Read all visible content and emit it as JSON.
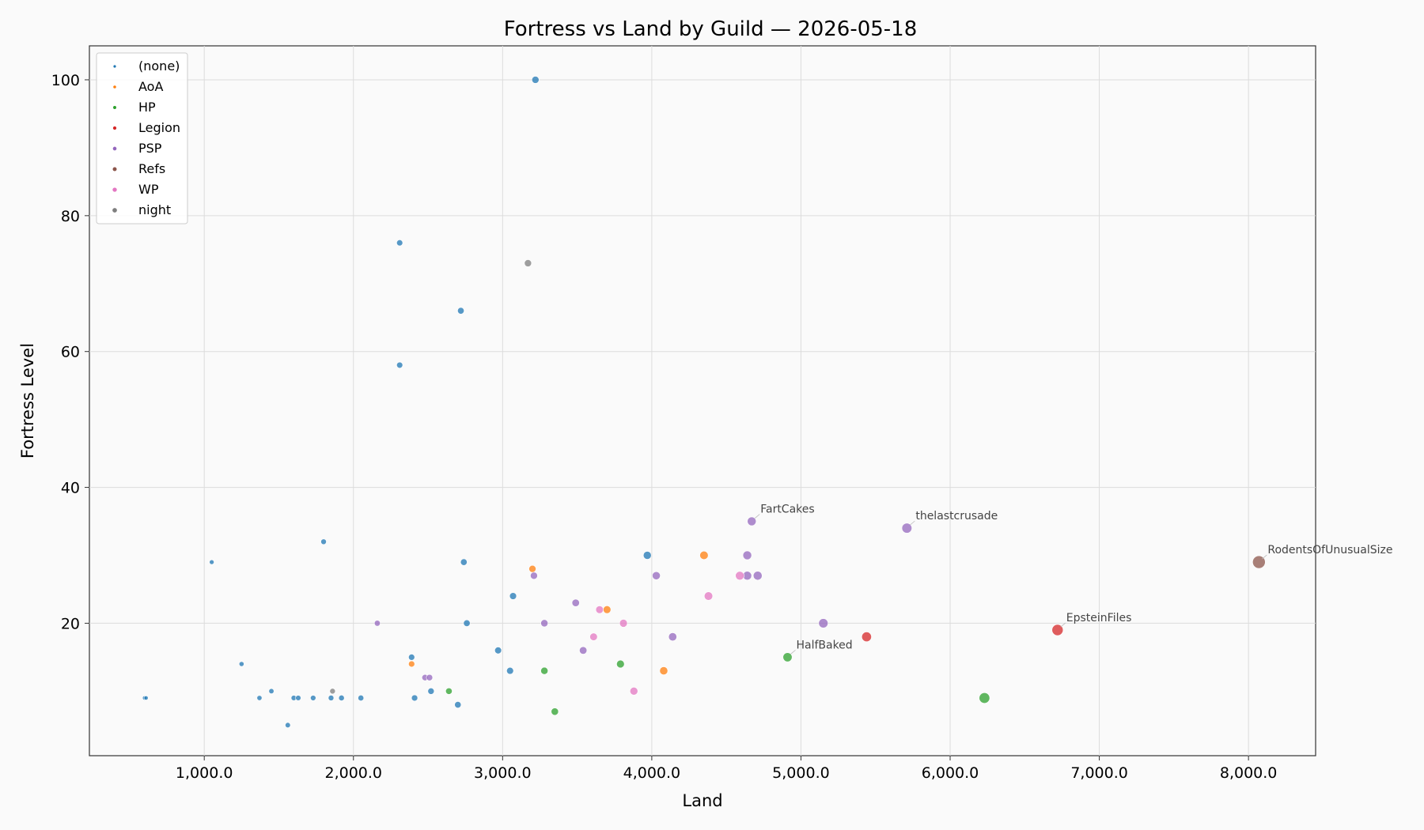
{
  "chart_data": {
    "type": "scatter",
    "title": "Fortress vs Land by Guild — 2026-05-18",
    "xlabel": "Land",
    "ylabel": "Fortress Level",
    "xlim": [
      230,
      8450
    ],
    "ylim": [
      0.5,
      105
    ],
    "xticks": [
      1000,
      2000,
      3000,
      4000,
      5000,
      6000,
      7000,
      8000
    ],
    "xtick_labels": [
      "1,000.0",
      "2,000.0",
      "3,000.0",
      "4,000.0",
      "5,000.0",
      "6,000.0",
      "7,000.0",
      "8,000.0"
    ],
    "yticks": [
      20,
      40,
      60,
      80,
      100
    ],
    "ytick_labels": [
      "20",
      "40",
      "60",
      "80",
      "100"
    ],
    "grid": true,
    "legend_position": "top-left",
    "series": [
      {
        "name": "(none)",
        "color": "#1f77b4",
        "points": [
          [
            600,
            9
          ],
          [
            610,
            9
          ],
          [
            1050,
            29
          ],
          [
            1250,
            14
          ],
          [
            1370,
            9
          ],
          [
            1450,
            10
          ],
          [
            1560,
            5
          ],
          [
            1600,
            9
          ],
          [
            1630,
            9
          ],
          [
            1730,
            9
          ],
          [
            1800,
            32
          ],
          [
            1850,
            9
          ],
          [
            1920,
            9
          ],
          [
            2050,
            9
          ],
          [
            2310,
            76
          ],
          [
            2310,
            58
          ],
          [
            2390,
            15
          ],
          [
            2410,
            9
          ],
          [
            2520,
            10
          ],
          [
            2700,
            8
          ],
          [
            2720,
            66
          ],
          [
            2740,
            29
          ],
          [
            2760,
            20
          ],
          [
            2970,
            16
          ],
          [
            3050,
            13
          ],
          [
            3070,
            24
          ],
          [
            3220,
            100
          ],
          [
            3970,
            30
          ]
        ]
      },
      {
        "name": "AoA",
        "color": "#ff7f0e",
        "points": [
          [
            2390,
            14
          ],
          [
            3200,
            28
          ],
          [
            3700,
            22
          ],
          [
            4080,
            13
          ],
          [
            4350,
            30
          ]
        ]
      },
      {
        "name": "HP",
        "color": "#2ca02c",
        "points": [
          [
            2640,
            10
          ],
          [
            3280,
            13
          ],
          [
            3350,
            7
          ],
          [
            3790,
            14
          ],
          [
            4910,
            15
          ],
          [
            6230,
            9
          ]
        ]
      },
      {
        "name": "Legion",
        "color": "#d62728",
        "points": [
          [
            5440,
            18
          ],
          [
            6720,
            19
          ]
        ]
      },
      {
        "name": "PSP",
        "color": "#9467bd",
        "points": [
          [
            2160,
            20
          ],
          [
            2480,
            12
          ],
          [
            2510,
            12
          ],
          [
            3210,
            27
          ],
          [
            3280,
            20
          ],
          [
            3490,
            23
          ],
          [
            3540,
            16
          ],
          [
            4030,
            27
          ],
          [
            4140,
            18
          ],
          [
            4640,
            30
          ],
          [
            4640,
            27
          ],
          [
            4670,
            35
          ],
          [
            4710,
            27
          ],
          [
            5150,
            20
          ],
          [
            5710,
            34
          ]
        ]
      },
      {
        "name": "Refs",
        "color": "#8c564b",
        "points": [
          [
            8070,
            29
          ]
        ]
      },
      {
        "name": "WP",
        "color": "#e377c2",
        "points": [
          [
            3610,
            18
          ],
          [
            3650,
            22
          ],
          [
            3810,
            20
          ],
          [
            3880,
            10
          ],
          [
            4380,
            24
          ],
          [
            4590,
            27
          ]
        ]
      },
      {
        "name": "night",
        "color": "#7f7f7f",
        "points": [
          [
            1860,
            10
          ],
          [
            3170,
            73
          ]
        ]
      }
    ],
    "annotations": [
      {
        "text": "FartCakes",
        "x": 4670,
        "y": 35
      },
      {
        "text": "thelastcrusade",
        "x": 5710,
        "y": 34
      },
      {
        "text": "RodentsOfUnusualSize",
        "x": 8070,
        "y": 29
      },
      {
        "text": "EpsteinFiles",
        "x": 6720,
        "y": 19
      },
      {
        "text": "HalfBaked",
        "x": 4910,
        "y": 15
      }
    ]
  }
}
